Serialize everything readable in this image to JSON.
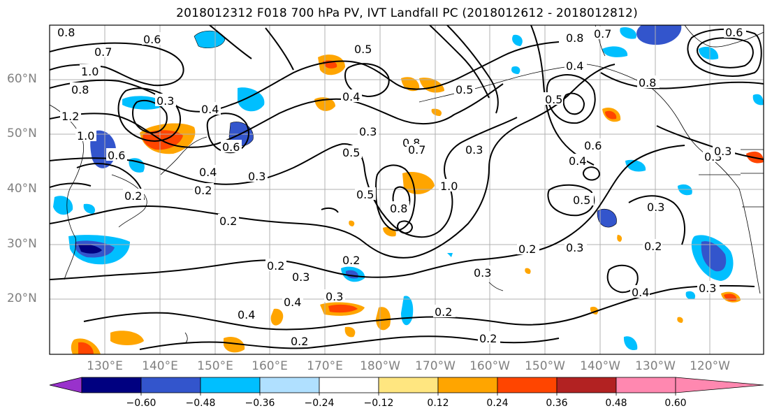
{
  "title": "2018012312 F018 700 hPa PV, IVT Landfall PC (2018012612 - 2018012812)",
  "lat_labels": [
    "60°N",
    "50°N",
    "40°N",
    "30°N",
    "20°N"
  ],
  "lon_labels": [
    "130°E",
    "140°E",
    "150°E",
    "160°E",
    "170°E",
    "180°W",
    "170°W",
    "160°W",
    "150°W",
    "140°W",
    "130°W",
    "120°W"
  ],
  "contour_labels": [
    "0.8",
    "0.6",
    "0.7",
    "1.0",
    "0.8",
    "1.2",
    "1.0",
    "0.6",
    "0.3",
    "0.4",
    "0.6",
    "0.5",
    "0.4",
    "0.3",
    "0.4",
    "0.2",
    "0.3",
    "0.5",
    "0.8",
    "0.7",
    "0.3",
    "0.5",
    "0.8",
    "1.0",
    "0.2",
    "0.2",
    "0.3",
    "0.4",
    "0.2",
    "0.3",
    "0.4",
    "0.2",
    "0.2",
    "0.2",
    "0.3",
    "0.2",
    "0.3",
    "0.4",
    "0.5",
    "0.4",
    "0.6",
    "0.3",
    "0.2",
    "0.3",
    "0.4",
    "0.7",
    "0.8",
    "0.8",
    "0.6",
    "0.5",
    "0.3",
    "0.3",
    "0.2",
    "0.5"
  ],
  "colorbar": {
    "tick_labels": [
      "−0.60",
      "−0.48",
      "−0.36",
      "−0.24",
      "−0.12",
      "0.12",
      "0.24",
      "0.36",
      "0.48",
      "0.60"
    ],
    "colors": [
      "#9932cc",
      "#000080",
      "#3355cc",
      "#00bfff",
      "#b0e0ff",
      "#ffffff",
      "#ffe680",
      "#ffa500",
      "#ff4500",
      "#b22222",
      "#ff88b0"
    ]
  }
}
